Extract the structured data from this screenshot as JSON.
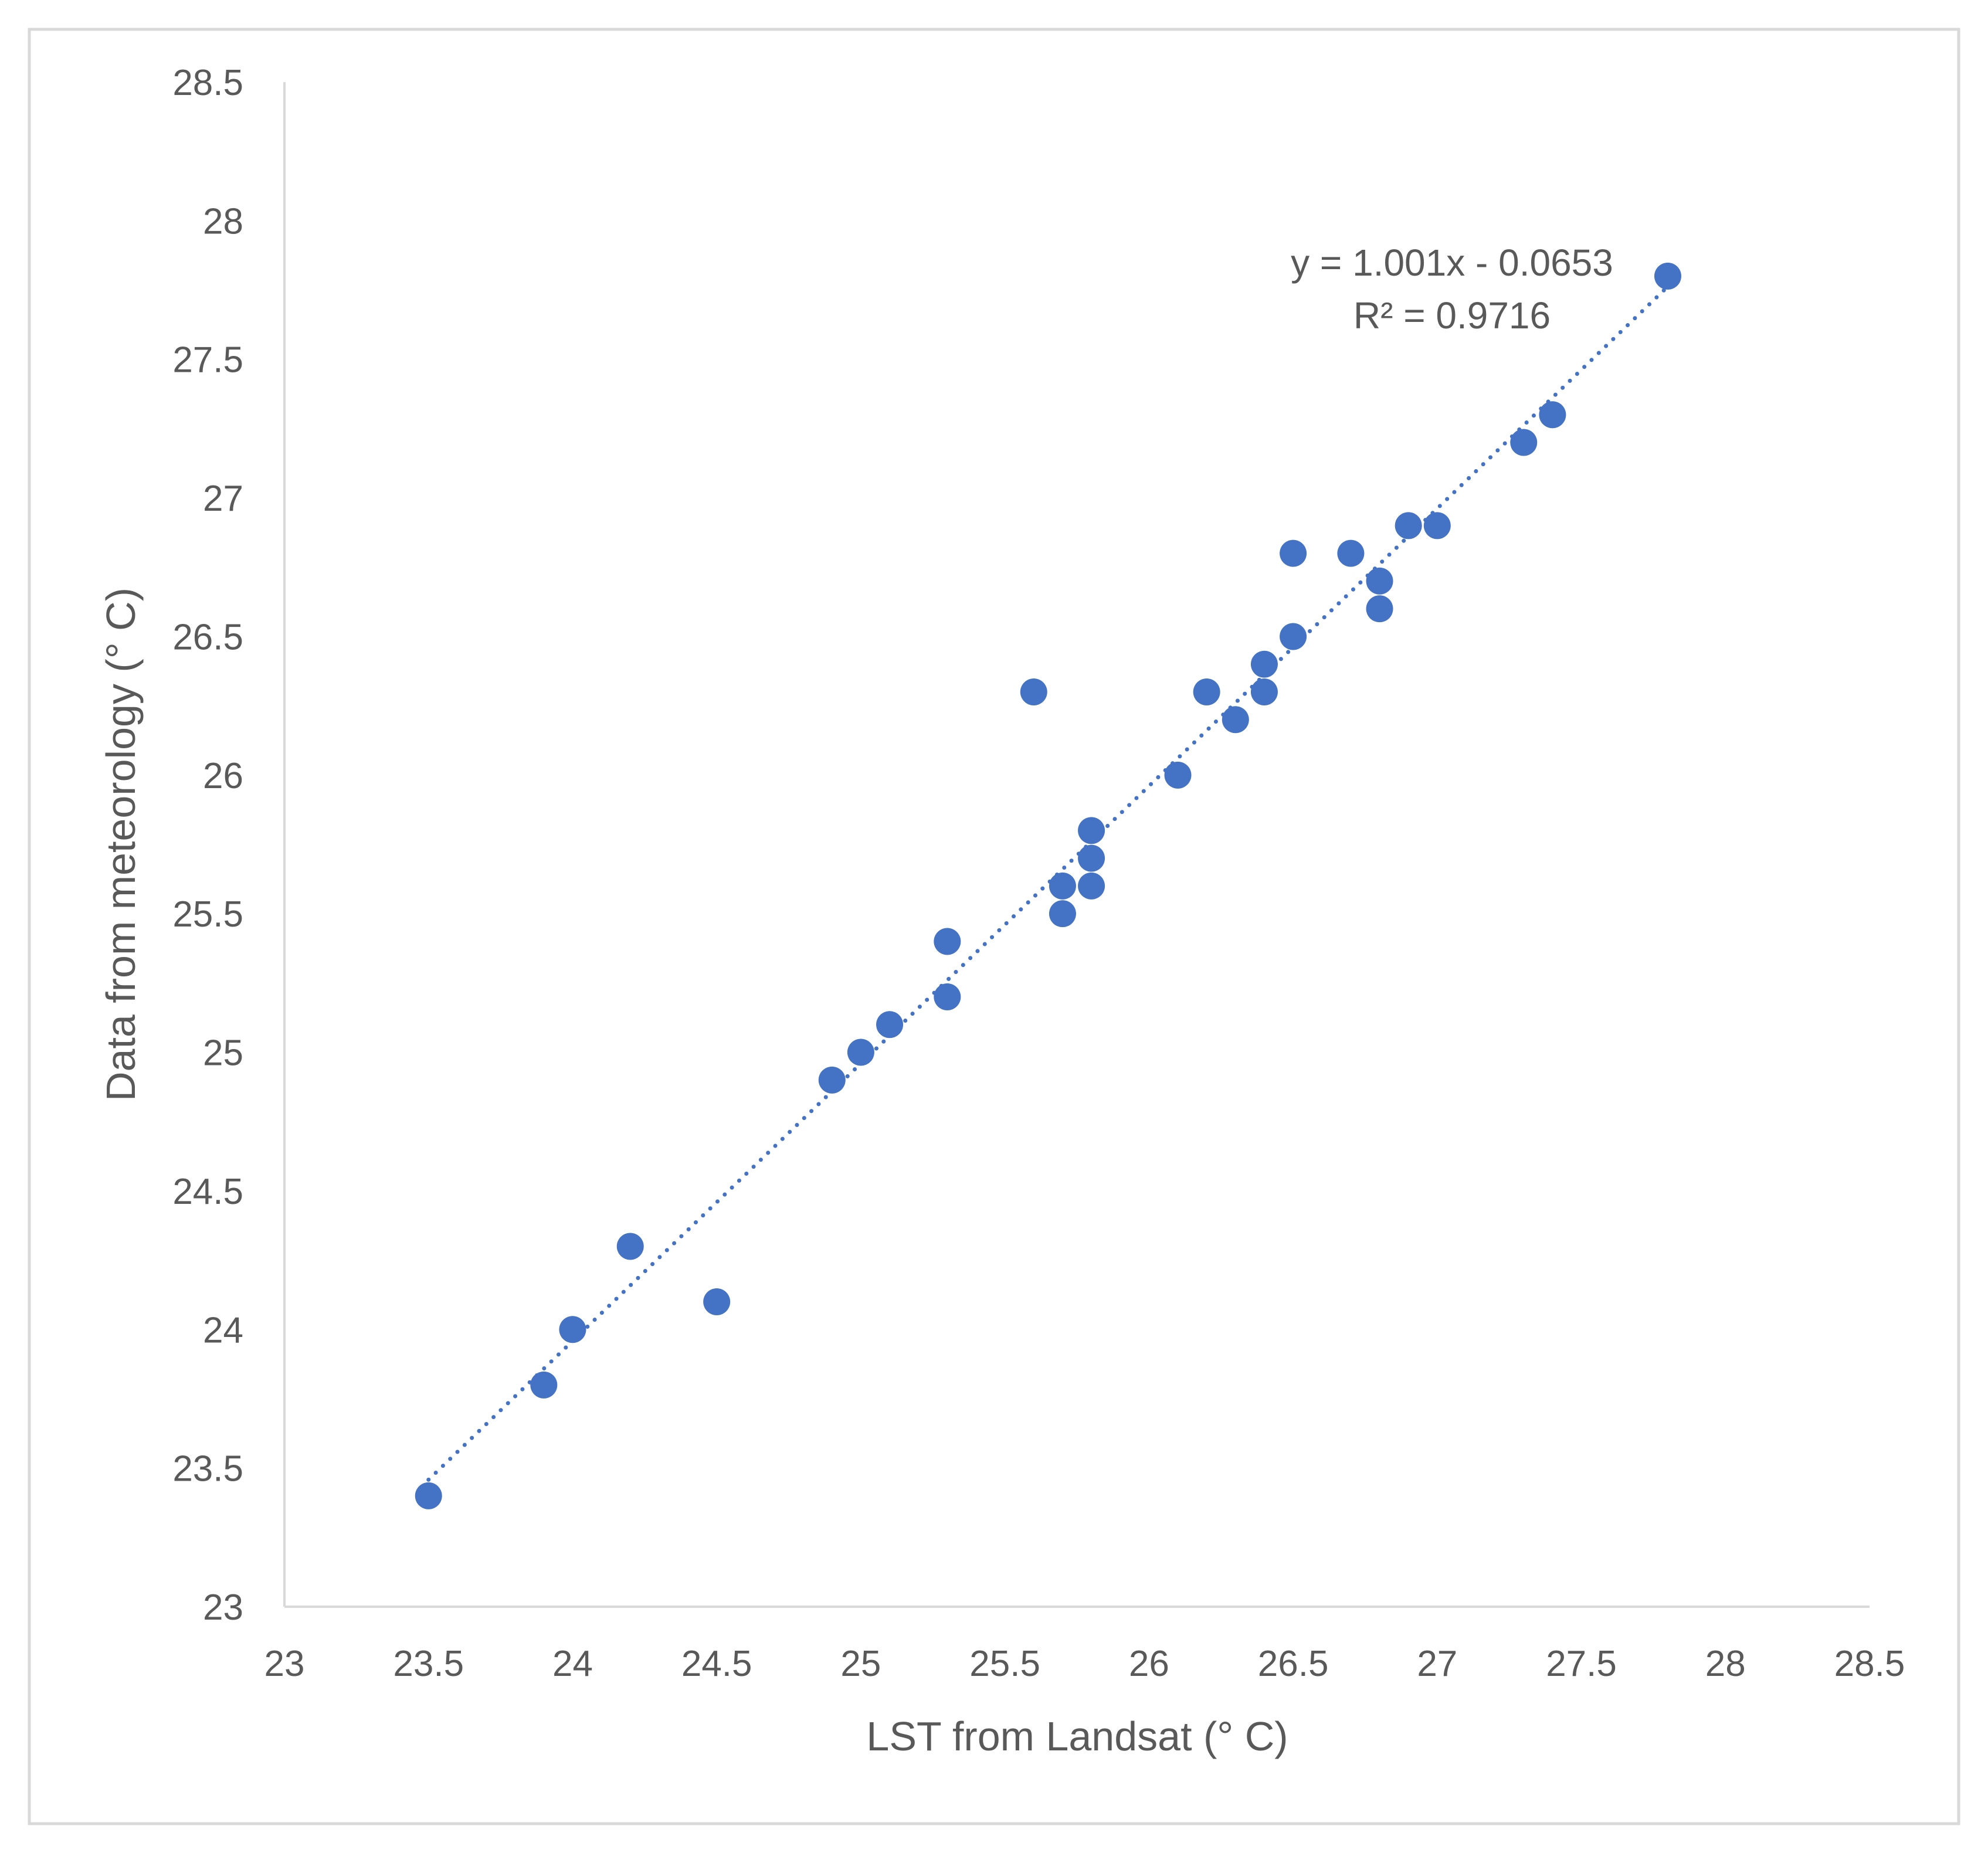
{
  "chart_data": {
    "type": "scatter",
    "title": "",
    "xlabel": "LST from Landsat (° C)",
    "ylabel": "Data from meteorology  (° C)",
    "xlim": [
      23,
      28.5
    ],
    "ylim": [
      23,
      28.5
    ],
    "x_ticks": [
      "23",
      "23.5",
      "24",
      "24.5",
      "25",
      "25.5",
      "26",
      "26.5",
      "27",
      "27.5",
      "28",
      "28.5"
    ],
    "y_ticks": [
      "23",
      "23.5",
      "24",
      "24.5",
      "25",
      "25.5",
      "26",
      "26.5",
      "27",
      "27.5",
      "28",
      "28.5"
    ],
    "grid": false,
    "legend": "none",
    "series": [
      {
        "marker_color": "#4472C4",
        "points": [
          {
            "x": 23.5,
            "y": 23.4
          },
          {
            "x": 23.9,
            "y": 23.8
          },
          {
            "x": 24.0,
            "y": 24.0
          },
          {
            "x": 24.2,
            "y": 24.3
          },
          {
            "x": 24.5,
            "y": 24.1
          },
          {
            "x": 24.9,
            "y": 24.9
          },
          {
            "x": 25.0,
            "y": 25.0
          },
          {
            "x": 25.1,
            "y": 25.1
          },
          {
            "x": 25.3,
            "y": 25.2
          },
          {
            "x": 25.3,
            "y": 25.4
          },
          {
            "x": 25.6,
            "y": 26.3
          },
          {
            "x": 25.7,
            "y": 25.5
          },
          {
            "x": 25.7,
            "y": 25.6
          },
          {
            "x": 25.8,
            "y": 25.6
          },
          {
            "x": 25.8,
            "y": 25.7
          },
          {
            "x": 25.8,
            "y": 25.8
          },
          {
            "x": 26.1,
            "y": 26.0
          },
          {
            "x": 26.2,
            "y": 26.3
          },
          {
            "x": 26.3,
            "y": 26.2
          },
          {
            "x": 26.4,
            "y": 26.3
          },
          {
            "x": 26.4,
            "y": 26.4
          },
          {
            "x": 26.5,
            "y": 26.5
          },
          {
            "x": 26.5,
            "y": 26.8
          },
          {
            "x": 26.7,
            "y": 26.8
          },
          {
            "x": 26.8,
            "y": 26.6
          },
          {
            "x": 26.8,
            "y": 26.7
          },
          {
            "x": 26.9,
            "y": 26.9
          },
          {
            "x": 27.0,
            "y": 26.9
          },
          {
            "x": 27.3,
            "y": 27.2
          },
          {
            "x": 27.4,
            "y": 27.3
          },
          {
            "x": 27.8,
            "y": 27.8
          }
        ]
      }
    ],
    "trendline": {
      "type": "linear",
      "slope": 1.001,
      "intercept": -0.0653,
      "x_range": [
        23.5,
        27.8
      ],
      "style": "dotted",
      "color": "#4472C4",
      "equation_label": "y = 1.001x - 0.0653",
      "r2_label": "R² = 0.9716"
    },
    "colors": {
      "axis": "#D9D9D9",
      "text": "#595959",
      "frame": "#D9D9D9"
    }
  }
}
